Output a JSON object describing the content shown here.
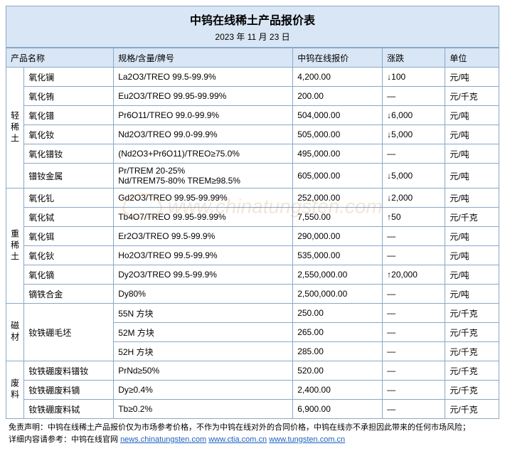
{
  "title": "中钨在线稀土产品报价表",
  "date": "2023 年 11 月 23 日",
  "columns": {
    "name": "产品名称",
    "spec": "规格/含量/牌号",
    "price": "中钨在线报价",
    "change": "涨跌",
    "unit": "单位"
  },
  "groups": [
    {
      "label": "轻稀土",
      "rows": [
        {
          "name": "氧化镧",
          "spec": "La2O3/TREO 99.5-99.9%",
          "price": "4,200.00",
          "change": "↓100",
          "unit": "元/吨"
        },
        {
          "name": "氧化铕",
          "spec": "Eu2O3/TREO 99.95-99.99%",
          "price": "200.00",
          "change": "—",
          "unit": "元/千克"
        },
        {
          "name": "氧化镨",
          "spec": "Pr6O11/TREO 99.0-99.9%",
          "price": "504,000.00",
          "change": "↓6,000",
          "unit": "元/吨"
        },
        {
          "name": "氧化钕",
          "spec": "Nd2O3/TREO 99.0-99.9%",
          "price": "505,000.00",
          "change": "↓5,000",
          "unit": "元/吨"
        },
        {
          "name": "氧化镨钕",
          "spec": "(Nd2O3+Pr6O11)/TREO≥75.0%",
          "price": "495,000.00",
          "change": "—",
          "unit": "元/吨"
        },
        {
          "name": "镨钕金属",
          "spec": "Pr/TREM 20-25%\nNd/TREM75-80% TREM≥98.5%",
          "price": "605,000.00",
          "change": "↓5,000",
          "unit": "元/吨"
        }
      ]
    },
    {
      "label": "重稀土",
      "rows": [
        {
          "name": "氧化钆",
          "spec": "Gd2O3/TREO 99.95-99.99%",
          "price": "252,000.00",
          "change": "↓2,000",
          "unit": "元/吨"
        },
        {
          "name": "氧化铽",
          "spec": "Tb4O7/TREO 99.95-99.99%",
          "price": "7,550.00",
          "change": "↑50",
          "unit": "元/千克"
        },
        {
          "name": "氧化铒",
          "spec": "Er2O3/TREO 99.5-99.9%",
          "price": "290,000.00",
          "change": "—",
          "unit": "元/吨"
        },
        {
          "name": "氧化钬",
          "spec": "Ho2O3/TREO 99.5-99.9%",
          "price": "535,000.00",
          "change": "—",
          "unit": "元/吨"
        },
        {
          "name": "氧化镝",
          "spec": "Dy2O3/TREO 99.5-99.9%",
          "price": "2,550,000.00",
          "change": "↑20,000",
          "unit": "元/吨"
        },
        {
          "name": "镝铁合金",
          "spec": "Dy80%",
          "price": "2,500,000.00",
          "change": "—",
          "unit": "元/吨"
        }
      ]
    },
    {
      "label": "磁材",
      "rows": [
        {
          "name": "钕铁硼毛坯",
          "spec": "55N 方块",
          "price": "250.00",
          "change": "—",
          "unit": "元/千克",
          "rowspan": 3
        },
        {
          "name": "",
          "spec": "52M 方块",
          "price": "265.00",
          "change": "—",
          "unit": "元/千克"
        },
        {
          "name": "",
          "spec": "52H 方块",
          "price": "285.00",
          "change": "—",
          "unit": "元/千克"
        }
      ]
    },
    {
      "label": "废料",
      "rows": [
        {
          "name": "钕铁硼废料镨钕",
          "spec": "PrNd≥50%",
          "price": "520.00",
          "change": "—",
          "unit": "元/千克"
        },
        {
          "name": "钕铁硼废料镝",
          "spec": "Dy≥0.4%",
          "price": "2,400.00",
          "change": "—",
          "unit": "元/千克"
        },
        {
          "name": "钕铁硼废料铽",
          "spec": "Tb≥0.2%",
          "price": "6,900.00",
          "change": "—",
          "unit": "元/千克"
        }
      ]
    }
  ],
  "disclaimer": {
    "line1_prefix": "免责声明：中钨在线稀土产品报价仅为市场参考价格，不作为中钨在线对外的合同价格，中钨在线亦不承担因此带来的任何市场风险；",
    "line2_prefix": "详细内容请参考：中钨在线官网 ",
    "link1_text": "news.chinatungsten.com",
    "separator": "   ",
    "link2_text": "www.ctia.com.cn",
    "link3_text": "www.tungsten.com.cn"
  },
  "watermark_text": "www.chinatungsten.com",
  "colors": {
    "header_bg": "#d9e6f5",
    "border": "#8aa8c8",
    "link": "#1d5fbf"
  }
}
